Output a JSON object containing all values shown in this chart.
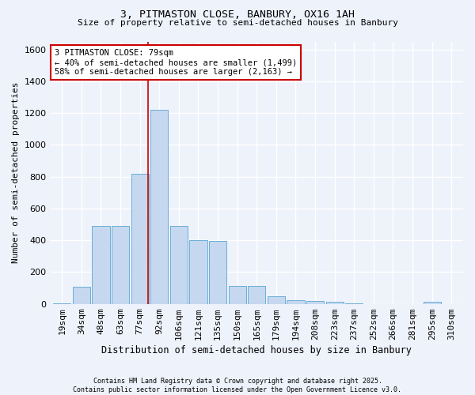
{
  "title_line1": "3, PITMASTON CLOSE, BANBURY, OX16 1AH",
  "title_line2": "Size of property relative to semi-detached houses in Banbury",
  "xlabel": "Distribution of semi-detached houses by size in Banbury",
  "ylabel": "Number of semi-detached properties",
  "bin_labels": [
    "19sqm",
    "34sqm",
    "48sqm",
    "63sqm",
    "77sqm",
    "92sqm",
    "106sqm",
    "121sqm",
    "135sqm",
    "150sqm",
    "165sqm",
    "179sqm",
    "194sqm",
    "208sqm",
    "223sqm",
    "237sqm",
    "252sqm",
    "266sqm",
    "281sqm",
    "295sqm",
    "310sqm"
  ],
  "bar_heights": [
    5,
    110,
    490,
    490,
    820,
    1220,
    490,
    400,
    395,
    115,
    115,
    50,
    25,
    20,
    15,
    5,
    0,
    0,
    0,
    15,
    0
  ],
  "bar_color": "#c5d8f0",
  "bar_edge_color": "#6baed6",
  "vline_color": "#cc0000",
  "vline_x": 4.42,
  "annotation_text": "3 PITMASTON CLOSE: 79sqm\n← 40% of semi-detached houses are smaller (1,499)\n58% of semi-detached houses are larger (2,163) →",
  "annotation_box_color": "#ffffff",
  "annotation_box_edge": "#cc0000",
  "ylim": [
    0,
    1650
  ],
  "background_color": "#eef2fb",
  "grid_color": "#ffffff",
  "footnote": "Contains HM Land Registry data © Crown copyright and database right 2025.\nContains public sector information licensed under the Open Government Licence v3.0."
}
